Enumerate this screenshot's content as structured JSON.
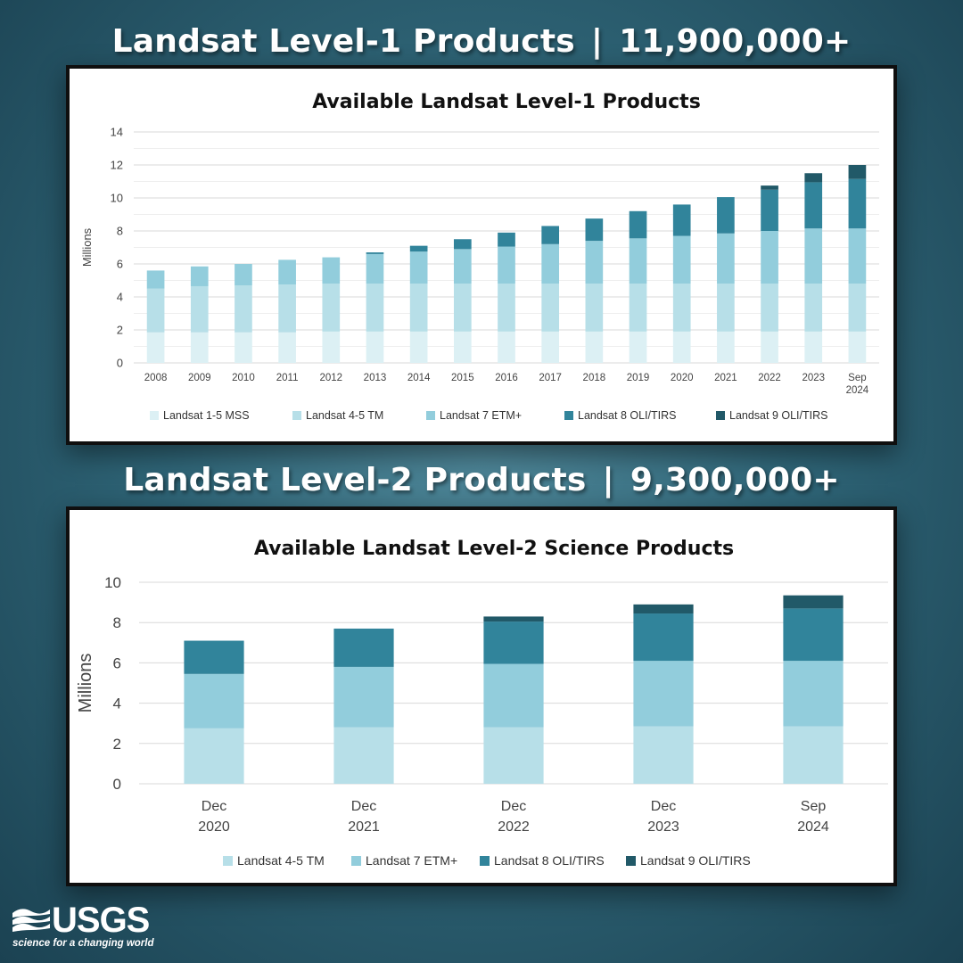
{
  "header1": {
    "title": "Landsat Level-1 Products",
    "separator": "|",
    "count": "11,900,000+"
  },
  "header2": {
    "title": "Landsat Level-2 Products",
    "separator": "|",
    "count": "9,300,000+"
  },
  "logo": {
    "name": "USGS",
    "tagline": "science for a changing world"
  },
  "colors": {
    "mss": "#dcf0f4",
    "tm": "#b7dfe8",
    "etm": "#92cddc",
    "oli8": "#31849b",
    "oli9": "#215968"
  },
  "chart_data": [
    {
      "type": "bar",
      "stacked": true,
      "title": "Available Landsat Level-1 Products",
      "ylabel": "Millions",
      "xlabel": "",
      "ylim": [
        0,
        14
      ],
      "yticks": [
        0,
        2,
        4,
        6,
        8,
        10,
        12,
        14
      ],
      "grid": true,
      "legend": "bottom",
      "categories": [
        [
          "2008"
        ],
        [
          "2009"
        ],
        [
          "2010"
        ],
        [
          "2011"
        ],
        [
          "2012"
        ],
        [
          "2013"
        ],
        [
          "2014"
        ],
        [
          "2015"
        ],
        [
          "2016"
        ],
        [
          "2017"
        ],
        [
          "2018"
        ],
        [
          "2019"
        ],
        [
          "2020"
        ],
        [
          "2021"
        ],
        [
          "2022"
        ],
        [
          "2023"
        ],
        [
          "Sep",
          "2024"
        ]
      ],
      "series": [
        {
          "name": "Landsat 1-5 MSS",
          "color_key": "mss",
          "values": [
            1.85,
            1.85,
            1.85,
            1.85,
            1.9,
            1.9,
            1.9,
            1.9,
            1.9,
            1.9,
            1.9,
            1.9,
            1.9,
            1.9,
            1.9,
            1.9,
            1.9
          ]
        },
        {
          "name": "Landsat 4-5 TM",
          "color_key": "tm",
          "values": [
            2.65,
            2.8,
            2.85,
            2.9,
            2.9,
            2.9,
            2.9,
            2.9,
            2.9,
            2.9,
            2.9,
            2.9,
            2.9,
            2.9,
            2.9,
            2.9,
            2.9
          ]
        },
        {
          "name": "Landsat 7 ETM+",
          "color_key": "etm",
          "values": [
            1.1,
            1.2,
            1.3,
            1.5,
            1.6,
            1.8,
            1.95,
            2.1,
            2.25,
            2.4,
            2.6,
            2.75,
            2.9,
            3.05,
            3.2,
            3.35,
            3.35
          ]
        },
        {
          "name": "Landsat 8 OLI/TIRS",
          "color_key": "oli8",
          "values": [
            0,
            0,
            0,
            0,
            0,
            0.1,
            0.35,
            0.6,
            0.85,
            1.1,
            1.35,
            1.65,
            1.9,
            2.2,
            2.5,
            2.8,
            3.0
          ]
        },
        {
          "name": "Landsat 9 OLI/TIRS",
          "color_key": "oli9",
          "values": [
            0,
            0,
            0,
            0,
            0,
            0,
            0,
            0,
            0,
            0,
            0,
            0,
            0,
            0,
            0.25,
            0.55,
            0.85
          ]
        }
      ]
    },
    {
      "type": "bar",
      "stacked": true,
      "title": "Available Landsat Level-2 Science Products",
      "ylabel": "Millions",
      "xlabel": "",
      "ylim": [
        0,
        10
      ],
      "yticks": [
        0,
        2,
        4,
        6,
        8,
        10
      ],
      "grid": true,
      "legend": "bottom",
      "categories": [
        [
          "Dec",
          "2020"
        ],
        [
          "Dec",
          "2021"
        ],
        [
          "Dec",
          "2022"
        ],
        [
          "Dec",
          "2023"
        ],
        [
          "Sep",
          "2024"
        ]
      ],
      "series": [
        {
          "name": "Landsat 4-5 TM",
          "color_key": "tm",
          "values": [
            2.75,
            2.8,
            2.8,
            2.85,
            2.85
          ]
        },
        {
          "name": "Landsat 7 ETM+",
          "color_key": "etm",
          "values": [
            2.7,
            3.0,
            3.15,
            3.25,
            3.25
          ]
        },
        {
          "name": "Landsat 8 OLI/TIRS",
          "color_key": "oli8",
          "values": [
            1.65,
            1.9,
            2.1,
            2.35,
            2.6
          ]
        },
        {
          "name": "Landsat 9 OLI/TIRS",
          "color_key": "oli9",
          "values": [
            0,
            0,
            0.25,
            0.45,
            0.65
          ]
        }
      ]
    }
  ]
}
